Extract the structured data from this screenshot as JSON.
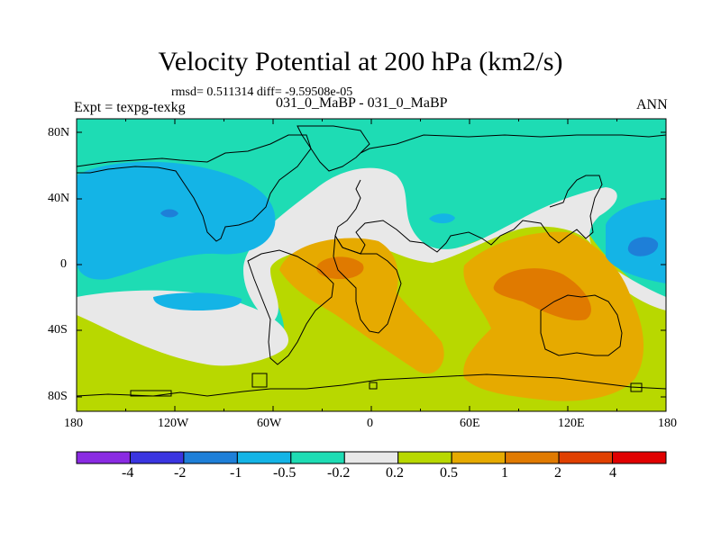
{
  "title": "Velocity Potential at 200 hPa (km2/s)",
  "stats": "rmsd= 0.511314  diff= -9.59508e-05",
  "left_label": "Expt = texpg-texkg",
  "center_label": "031_0_MaBP - 031_0_MaBP",
  "right_label": "ANN",
  "x_ticks": [
    "180",
    "120W",
    "60W",
    "0",
    "60E",
    "120E",
    "180"
  ],
  "y_ticks": [
    "80N",
    "40N",
    "0",
    "40S",
    "80S"
  ],
  "colorbar": {
    "colors": [
      "#8a2be2",
      "#3a35e0",
      "#1e7fd8",
      "#14b4e6",
      "#1edcb4",
      "#e8e8e8",
      "#b8d800",
      "#e6aa00",
      "#e07a00",
      "#e04000",
      "#e00000"
    ],
    "labels": [
      "-4",
      "-2",
      "-1",
      "-0.5",
      "-0.2",
      "0.2",
      "0.5",
      "1",
      "2",
      "4"
    ]
  },
  "field_colors": {
    "cyan": "#1edcb4",
    "blue1": "#14b4e6",
    "blue2": "#1e7fd8",
    "white": "#e8e8e8",
    "yellowgreen": "#b8d800",
    "orange": "#e6aa00",
    "darkorange": "#e07a00"
  }
}
